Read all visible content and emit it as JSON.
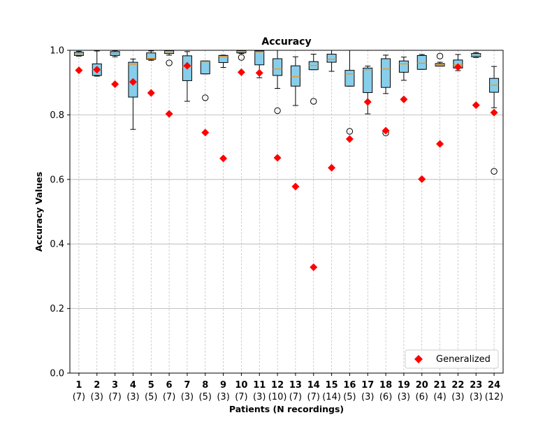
{
  "chart_data": {
    "type": "box",
    "title": "Accuracy",
    "xlabel": "Patients (N recordings)",
    "ylabel": "Accuracy Values",
    "ylim": [
      0.0,
      1.0
    ],
    "yticks": [
      "0.0",
      "0.2",
      "0.4",
      "0.6",
      "0.8",
      "1.0"
    ],
    "grid": "horizontal solid, vertical dashed",
    "legend_location": "lower right",
    "colors": {
      "box_fill": "#87ceeb",
      "median": "#ff8c00",
      "marker": "#ff0000",
      "grid": "#b0b0b0"
    },
    "categories": [
      "1",
      "2",
      "3",
      "4",
      "5",
      "6",
      "7",
      "8",
      "9",
      "10",
      "11",
      "12",
      "13",
      "14",
      "15",
      "16",
      "17",
      "18",
      "19",
      "20",
      "21",
      "22",
      "23",
      "24"
    ],
    "n_recordings": [
      "(7)",
      "(3)",
      "(7)",
      "(3)",
      "(5)",
      "(7)",
      "(3)",
      "(5)",
      "(3)",
      "(7)",
      "(3)",
      "(10)",
      "(7)",
      "(7)",
      "(14)",
      "(5)",
      "(3)",
      "(6)",
      "(3)",
      "(6)",
      "(4)",
      "(3)",
      "(3)",
      "(12)"
    ],
    "boxes": [
      {
        "patient": "1",
        "whislo": 0.982,
        "q1": 0.984,
        "med": 0.989,
        "q3": 0.994,
        "whishi": 0.997,
        "fliers": []
      },
      {
        "patient": "2",
        "whislo": 0.92,
        "q1": 0.922,
        "med": 0.94,
        "q3": 0.958,
        "whishi": 0.998,
        "fliers": []
      },
      {
        "patient": "3",
        "whislo": 0.98,
        "q1": 0.984,
        "med": 0.99,
        "q3": 0.996,
        "whishi": 0.999,
        "fliers": []
      },
      {
        "patient": "4",
        "whislo": 0.755,
        "q1": 0.855,
        "med": 0.957,
        "q3": 0.963,
        "whishi": 0.973,
        "fliers": []
      },
      {
        "patient": "5",
        "whislo": 0.969,
        "q1": 0.972,
        "med": 0.975,
        "q3": 0.992,
        "whishi": 0.998,
        "fliers": []
      },
      {
        "patient": "6",
        "whislo": 0.985,
        "q1": 0.99,
        "med": 0.995,
        "q3": 0.999,
        "whishi": 1.0,
        "fliers": [
          0.961
        ]
      },
      {
        "patient": "7",
        "whislo": 0.842,
        "q1": 0.906,
        "med": 0.95,
        "q3": 0.983,
        "whishi": 0.996,
        "fliers": []
      },
      {
        "patient": "8",
        "whislo": 0.927,
        "q1": 0.927,
        "med": 0.965,
        "q3": 0.967,
        "whishi": 0.967,
        "fliers": [
          0.853
        ]
      },
      {
        "patient": "9",
        "whislo": 0.947,
        "q1": 0.962,
        "med": 0.98,
        "q3": 0.984,
        "whishi": 0.985,
        "fliers": []
      },
      {
        "patient": "10",
        "whislo": 0.99,
        "q1": 0.992,
        "med": 0.996,
        "q3": 0.999,
        "whishi": 1.0,
        "fliers": [
          0.978
        ]
      },
      {
        "patient": "11",
        "whislo": 0.915,
        "q1": 0.955,
        "med": 0.995,
        "q3": 0.998,
        "whishi": 1.0,
        "fliers": []
      },
      {
        "patient": "12",
        "whislo": 0.882,
        "q1": 0.922,
        "med": 0.942,
        "q3": 0.974,
        "whishi": 1.0,
        "fliers": [
          0.813
        ]
      },
      {
        "patient": "13",
        "whislo": 0.829,
        "q1": 0.889,
        "med": 0.918,
        "q3": 0.952,
        "whishi": 0.98,
        "fliers": []
      },
      {
        "patient": "14",
        "whislo": 0.94,
        "q1": 0.94,
        "med": 0.953,
        "q3": 0.965,
        "whishi": 0.988,
        "fliers": [
          0.842
        ]
      },
      {
        "patient": "15",
        "whislo": 0.935,
        "q1": 0.963,
        "med": 0.972,
        "q3": 0.988,
        "whishi": 1.0,
        "fliers": []
      },
      {
        "patient": "16",
        "whislo": 0.889,
        "q1": 0.889,
        "med": 0.927,
        "q3": 0.938,
        "whishi": 1.0,
        "fliers": [
          0.749
        ]
      },
      {
        "patient": "17",
        "whislo": 0.803,
        "q1": 0.869,
        "med": 0.94,
        "q3": 0.945,
        "whishi": 0.951,
        "fliers": []
      },
      {
        "patient": "18",
        "whislo": 0.866,
        "q1": 0.885,
        "med": 0.942,
        "q3": 0.974,
        "whishi": 0.985,
        "fliers": [
          0.744
        ]
      },
      {
        "patient": "19",
        "whislo": 0.907,
        "q1": 0.932,
        "med": 0.958,
        "q3": 0.967,
        "whishi": 0.979,
        "fliers": []
      },
      {
        "patient": "20",
        "whislo": 0.941,
        "q1": 0.941,
        "med": 0.96,
        "q3": 0.984,
        "whishi": 0.987,
        "fliers": []
      },
      {
        "patient": "21",
        "whislo": 0.951,
        "q1": 0.951,
        "med": 0.955,
        "q3": 0.959,
        "whishi": 0.963,
        "fliers": [
          0.982
        ]
      },
      {
        "patient": "22",
        "whislo": 0.937,
        "q1": 0.945,
        "med": 0.955,
        "q3": 0.97,
        "whishi": 0.987,
        "fliers": []
      },
      {
        "patient": "23",
        "whislo": 0.978,
        "q1": 0.98,
        "med": 0.984,
        "q3": 0.99,
        "whishi": 0.993,
        "fliers": []
      },
      {
        "patient": "24",
        "whislo": 0.822,
        "q1": 0.87,
        "med": 0.892,
        "q3": 0.913,
        "whishi": 0.95,
        "fliers": [
          0.625
        ]
      }
    ],
    "series": [
      {
        "name": "Generalized",
        "type": "scatter",
        "marker": "diamond",
        "values": [
          0.938,
          0.94,
          0.895,
          0.902,
          0.868,
          0.803,
          0.952,
          0.745,
          0.665,
          0.932,
          0.93,
          0.667,
          0.578,
          0.328,
          0.636,
          0.725,
          0.84,
          0.751,
          0.848,
          0.601,
          0.71,
          0.948,
          0.83,
          0.807
        ]
      }
    ]
  }
}
